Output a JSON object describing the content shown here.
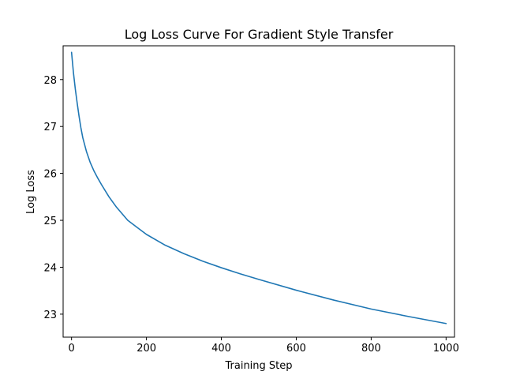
{
  "chart_data": {
    "type": "line",
    "title": "Log Loss Curve For Gradient Style Transfer",
    "xlabel": "Training Step",
    "ylabel": "Log Loss",
    "xlim": [
      -22.5,
      1022.5
    ],
    "ylim": [
      22.51,
      28.72
    ],
    "xticks": [
      0,
      200,
      400,
      600,
      800,
      1000
    ],
    "yticks": [
      23,
      24,
      25,
      26,
      27,
      28
    ],
    "grid": false,
    "series": [
      {
        "color": "#1f77b4",
        "x": [
          0,
          5,
          10,
          15,
          20,
          25,
          30,
          40,
          50,
          60,
          70,
          80,
          100,
          120,
          150,
          175,
          200,
          250,
          300,
          350,
          400,
          450,
          500,
          600,
          700,
          800,
          900,
          1000
        ],
        "y": [
          28.58,
          28.15,
          27.8,
          27.5,
          27.22,
          26.97,
          26.76,
          26.46,
          26.23,
          26.05,
          25.9,
          25.76,
          25.5,
          25.28,
          25.0,
          24.85,
          24.7,
          24.47,
          24.29,
          24.13,
          23.99,
          23.86,
          23.74,
          23.51,
          23.3,
          23.11,
          22.95,
          22.8
        ]
      }
    ]
  }
}
